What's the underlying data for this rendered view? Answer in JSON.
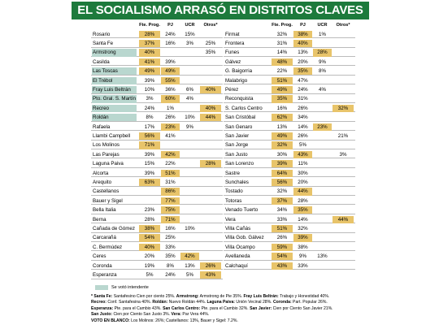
{
  "title": "EL SOCIALISMO ARRASÓ EN DISTRITOS CLAVES",
  "colors": {
    "title_bg": "#1d7a3c",
    "highlight_value": "#e8c46a",
    "highlight_name": "#b9d7cf"
  },
  "headers": {
    "prog": "Fte. Prog.",
    "pj": "PJ",
    "ucr": "UCR",
    "otros": "Otros*"
  },
  "left_rows": [
    {
      "name": "Rosario",
      "prog": "28%",
      "pj": "24%",
      "ucr": "15%",
      "otros": "",
      "hl": "prog",
      "name_hl": false
    },
    {
      "name": "Santa Fe",
      "prog": "37%",
      "pj": "16%",
      "ucr": "3%",
      "otros": "25%",
      "hl": "prog",
      "name_hl": false
    },
    {
      "name": "Armstrong",
      "prog": "40%",
      "pj": "",
      "ucr": "",
      "otros": "35%",
      "hl": "prog",
      "name_hl": true
    },
    {
      "name": "Casilda",
      "prog": "41%",
      "pj": "39%",
      "ucr": "",
      "otros": "",
      "hl": "prog",
      "name_hl": false
    },
    {
      "name": "Las Toscas",
      "prog": "49%",
      "pj": "49%",
      "ucr": "",
      "otros": "",
      "hl": "prog,pj",
      "name_hl": true
    },
    {
      "name": "El Trébol",
      "prog": "39%",
      "pj": "55%",
      "ucr": "",
      "otros": "",
      "hl": "pj",
      "name_hl": true
    },
    {
      "name": "Fray Luis Beltrán",
      "prog": "10%",
      "pj": "36%",
      "ucr": "6%",
      "otros": "40%",
      "hl": "otros",
      "name_hl": true
    },
    {
      "name": "Pto. Gral. S. Martín",
      "prog": "3%",
      "pj": "60%",
      "ucr": "4%",
      "otros": "",
      "hl": "pj",
      "name_hl": true
    },
    {
      "name": "Recreo",
      "prog": "24%",
      "pj": "1%",
      "ucr": "",
      "otros": "40%",
      "hl": "otros",
      "name_hl": true
    },
    {
      "name": "Roldán",
      "prog": "8%",
      "pj": "26%",
      "ucr": "10%",
      "otros": "44%",
      "hl": "otros",
      "name_hl": true
    },
    {
      "name": "Rafaela",
      "prog": "17%",
      "pj": "23%",
      "ucr": "9%",
      "otros": "",
      "hl": "pj",
      "name_hl": false
    },
    {
      "name": "Llambi Campbell",
      "prog": "56%",
      "pj": "41%",
      "ucr": "",
      "otros": "",
      "hl": "prog",
      "name_hl": false
    },
    {
      "name": "Los Molinos",
      "prog": "71%",
      "pj": "",
      "ucr": "",
      "otros": "",
      "hl": "prog",
      "name_hl": false
    },
    {
      "name": "Las Parejas",
      "prog": "39%",
      "pj": "42%",
      "ucr": "",
      "otros": "",
      "hl": "pj",
      "name_hl": false
    },
    {
      "name": "Laguna Paiva",
      "prog": "15%",
      "pj": "22%",
      "ucr": "",
      "otros": "28%",
      "hl": "otros",
      "name_hl": false
    },
    {
      "name": "Alcorta",
      "prog": "39%",
      "pj": "51%",
      "ucr": "",
      "otros": "",
      "hl": "pj",
      "name_hl": false
    },
    {
      "name": "Arequito",
      "prog": "63%",
      "pj": "31%",
      "ucr": "",
      "otros": "",
      "hl": "prog",
      "name_hl": false
    },
    {
      "name": "Castellanos",
      "prog": "",
      "pj": "86%",
      "ucr": "",
      "otros": "",
      "hl": "pj",
      "name_hl": false
    },
    {
      "name": "Bauer y Sigel",
      "prog": "",
      "pj": "77%",
      "ucr": "",
      "otros": "",
      "hl": "pj",
      "name_hl": false
    },
    {
      "name": "Bella Italia",
      "prog": "23%",
      "pj": "75%",
      "ucr": "",
      "otros": "",
      "hl": "pj",
      "name_hl": false
    },
    {
      "name": "Berna",
      "prog": "28%",
      "pj": "71%",
      "ucr": "",
      "otros": "",
      "hl": "pj",
      "name_hl": false
    },
    {
      "name": "Cañada de Gómez",
      "prog": "38%",
      "pj": "16%",
      "ucr": "10%",
      "otros": "",
      "hl": "prog",
      "name_hl": false
    },
    {
      "name": "Carcarañá",
      "prog": "54%",
      "pj": "25%",
      "ucr": "",
      "otros": "",
      "hl": "prog",
      "name_hl": false
    },
    {
      "name": "C. Bermúdez",
      "prog": "40%",
      "pj": "33%",
      "ucr": "",
      "otros": "",
      "hl": "prog",
      "name_hl": false
    },
    {
      "name": "Ceres",
      "prog": "20%",
      "pj": "35%",
      "ucr": "42%",
      "otros": "",
      "hl": "ucr",
      "name_hl": false
    },
    {
      "name": "Coronda",
      "prog": "19%",
      "pj": "8%",
      "ucr": "13%",
      "otros": "26%",
      "hl": "otros",
      "name_hl": false
    },
    {
      "name": "Esperanza",
      "prog": "5%",
      "pj": "24%",
      "ucr": "5%",
      "otros": "43%",
      "hl": "otros",
      "name_hl": false
    }
  ],
  "right_rows": [
    {
      "name": "Firmat",
      "prog": "32%",
      "pj": "38%",
      "ucr": "1%",
      "otros": "",
      "hl": "pj"
    },
    {
      "name": "Frontera",
      "prog": "31%",
      "pj": "40%",
      "ucr": "",
      "otros": "",
      "hl": "pj"
    },
    {
      "name": "Funes",
      "prog": "14%",
      "pj": "13%",
      "ucr": "28%",
      "otros": "",
      "hl": "ucr"
    },
    {
      "name": "Gálvez",
      "prog": "48%",
      "pj": "20%",
      "ucr": "9%",
      "otros": "",
      "hl": "prog"
    },
    {
      "name": "G. Baigorria",
      "prog": "22%",
      "pj": "35%",
      "ucr": "8%",
      "otros": "",
      "hl": "pj"
    },
    {
      "name": "Malabrigo",
      "prog": "51%",
      "pj": "47%",
      "ucr": "",
      "otros": "",
      "hl": "prog"
    },
    {
      "name": "Pérez",
      "prog": "49%",
      "pj": "24%",
      "ucr": "4%",
      "otros": "",
      "hl": "prog"
    },
    {
      "name": "Reconquista",
      "prog": "35%",
      "pj": "31%",
      "ucr": "",
      "otros": "",
      "hl": "prog"
    },
    {
      "name": "S. Carlos Centro",
      "prog": "16%",
      "pj": "26%",
      "ucr": "",
      "otros": "32%",
      "hl": "otros"
    },
    {
      "name": "San Cristóbal",
      "prog": "62%",
      "pj": "34%",
      "ucr": "",
      "otros": "",
      "hl": "prog"
    },
    {
      "name": "San Genaro",
      "prog": "13%",
      "pj": "14%",
      "ucr": "23%",
      "otros": "",
      "hl": "ucr"
    },
    {
      "name": "San Javier",
      "prog": "49%",
      "pj": "26%",
      "ucr": "",
      "otros": "21%",
      "hl": "prog"
    },
    {
      "name": "San Jorge",
      "prog": "32%",
      "pj": "5%",
      "ucr": "",
      "otros": "",
      "hl": "prog"
    },
    {
      "name": "San Justo",
      "prog": "30%",
      "pj": "43%",
      "ucr": "",
      "otros": "3%",
      "hl": "pj"
    },
    {
      "name": "San Lorenzo",
      "prog": "39%",
      "pj": "11%",
      "ucr": "",
      "otros": "",
      "hl": "prog"
    },
    {
      "name": "Sastre",
      "prog": "64%",
      "pj": "30%",
      "ucr": "",
      "otros": "",
      "hl": "prog"
    },
    {
      "name": "Sunchales",
      "prog": "56%",
      "pj": "20%",
      "ucr": "",
      "otros": "",
      "hl": "prog"
    },
    {
      "name": "Tostado",
      "prog": "32%",
      "pj": "44%",
      "ucr": "",
      "otros": "",
      "hl": "pj"
    },
    {
      "name": "Totoras",
      "prog": "37%",
      "pj": "28%",
      "ucr": "",
      "otros": "",
      "hl": "prog"
    },
    {
      "name": "Venado Tuerto",
      "prog": "34%",
      "pj": "35%",
      "ucr": "",
      "otros": "",
      "hl": "pj"
    },
    {
      "name": "Vera",
      "prog": "33%",
      "pj": "14%",
      "ucr": "",
      "otros": "44%",
      "hl": "otros"
    },
    {
      "name": "Villa Cañás",
      "prog": "51%",
      "pj": "32%",
      "ucr": "",
      "otros": "",
      "hl": "prog"
    },
    {
      "name": "Villa Gob. Gálvez",
      "prog": "26%",
      "pj": "39%",
      "ucr": "",
      "otros": "",
      "hl": "pj"
    },
    {
      "name": "Villa Ocampo",
      "prog": "59%",
      "pj": "38%",
      "ucr": "",
      "otros": "",
      "hl": "prog"
    },
    {
      "name": "Avellaneda",
      "prog": "54%",
      "pj": "9%",
      "ucr": "13%",
      "otros": "",
      "hl": "prog"
    },
    {
      "name": "Calchaquí",
      "prog": "43%",
      "pj": "33%",
      "ucr": "",
      "otros": "",
      "hl": "prog"
    }
  ],
  "legend": "Se votó intendente",
  "notes": [
    [
      {
        "b": true,
        "t": "* Santa Fe:"
      },
      {
        "b": false,
        "t": " Santafesino Cien por ciento 25%. "
      },
      {
        "b": true,
        "t": "Armstrong:"
      },
      {
        "b": false,
        "t": " Armstrong de Pie 35%. "
      },
      {
        "b": true,
        "t": "Fray Luis Beltrán:"
      },
      {
        "b": false,
        "t": " Trabajo y Honestidad 40%."
      }
    ],
    [
      {
        "b": true,
        "t": "Recreo:"
      },
      {
        "b": false,
        "t": " Conf. Santafesina 40%. "
      },
      {
        "b": true,
        "t": "Roldán:"
      },
      {
        "b": false,
        "t": " Nuevo Roldán 44%. "
      },
      {
        "b": true,
        "t": "Laguna Paiva:"
      },
      {
        "b": false,
        "t": " Unión Vecinal 28%. "
      },
      {
        "b": true,
        "t": "Coronda:"
      },
      {
        "b": false,
        "t": " Part. Popular 26%."
      }
    ],
    [
      {
        "b": true,
        "t": "Esperanza:"
      },
      {
        "b": false,
        "t": " Pte. para el Cambio 43%. "
      },
      {
        "b": true,
        "t": "San Carlos Centro:"
      },
      {
        "b": false,
        "t": " Pte. para el Cambio 32%. "
      },
      {
        "b": true,
        "t": "San Javier:"
      },
      {
        "b": false,
        "t": " Cien por Ciento San Javier 21%."
      }
    ],
    [
      {
        "b": true,
        "t": "San Justo:"
      },
      {
        "b": false,
        "t": " Cien por Ciento San Justo 3%. "
      },
      {
        "b": true,
        "t": "Vera:"
      },
      {
        "b": false,
        "t": " Par Vera 44%."
      }
    ],
    [
      {
        "b": true,
        "t": "VOTO EN BLANCO:"
      },
      {
        "b": false,
        "t": " Los Molinos: 26%; Castellanos: 13%, Bauer y Sigel: 7.2%."
      }
    ]
  ]
}
